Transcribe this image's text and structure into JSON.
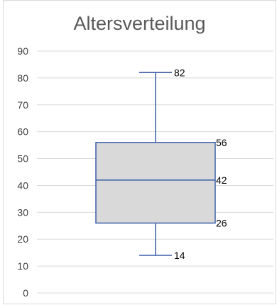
{
  "chart_data": {
    "type": "boxplot",
    "title": "Altersverteilung",
    "ylim": [
      0,
      90
    ],
    "yticks": [
      0,
      10,
      20,
      30,
      40,
      50,
      60,
      70,
      80,
      90
    ],
    "grid": true,
    "box": {
      "min": 14,
      "q1": 26,
      "median": 42,
      "q3": 56,
      "max": 82
    },
    "labels": [
      "82",
      "56",
      "42",
      "26",
      "14"
    ],
    "colors": {
      "box_fill": "#d9d9d9",
      "box_stroke": "#3b5ea8",
      "grid": "#d9d9d9",
      "axis_text": "#404040"
    }
  }
}
